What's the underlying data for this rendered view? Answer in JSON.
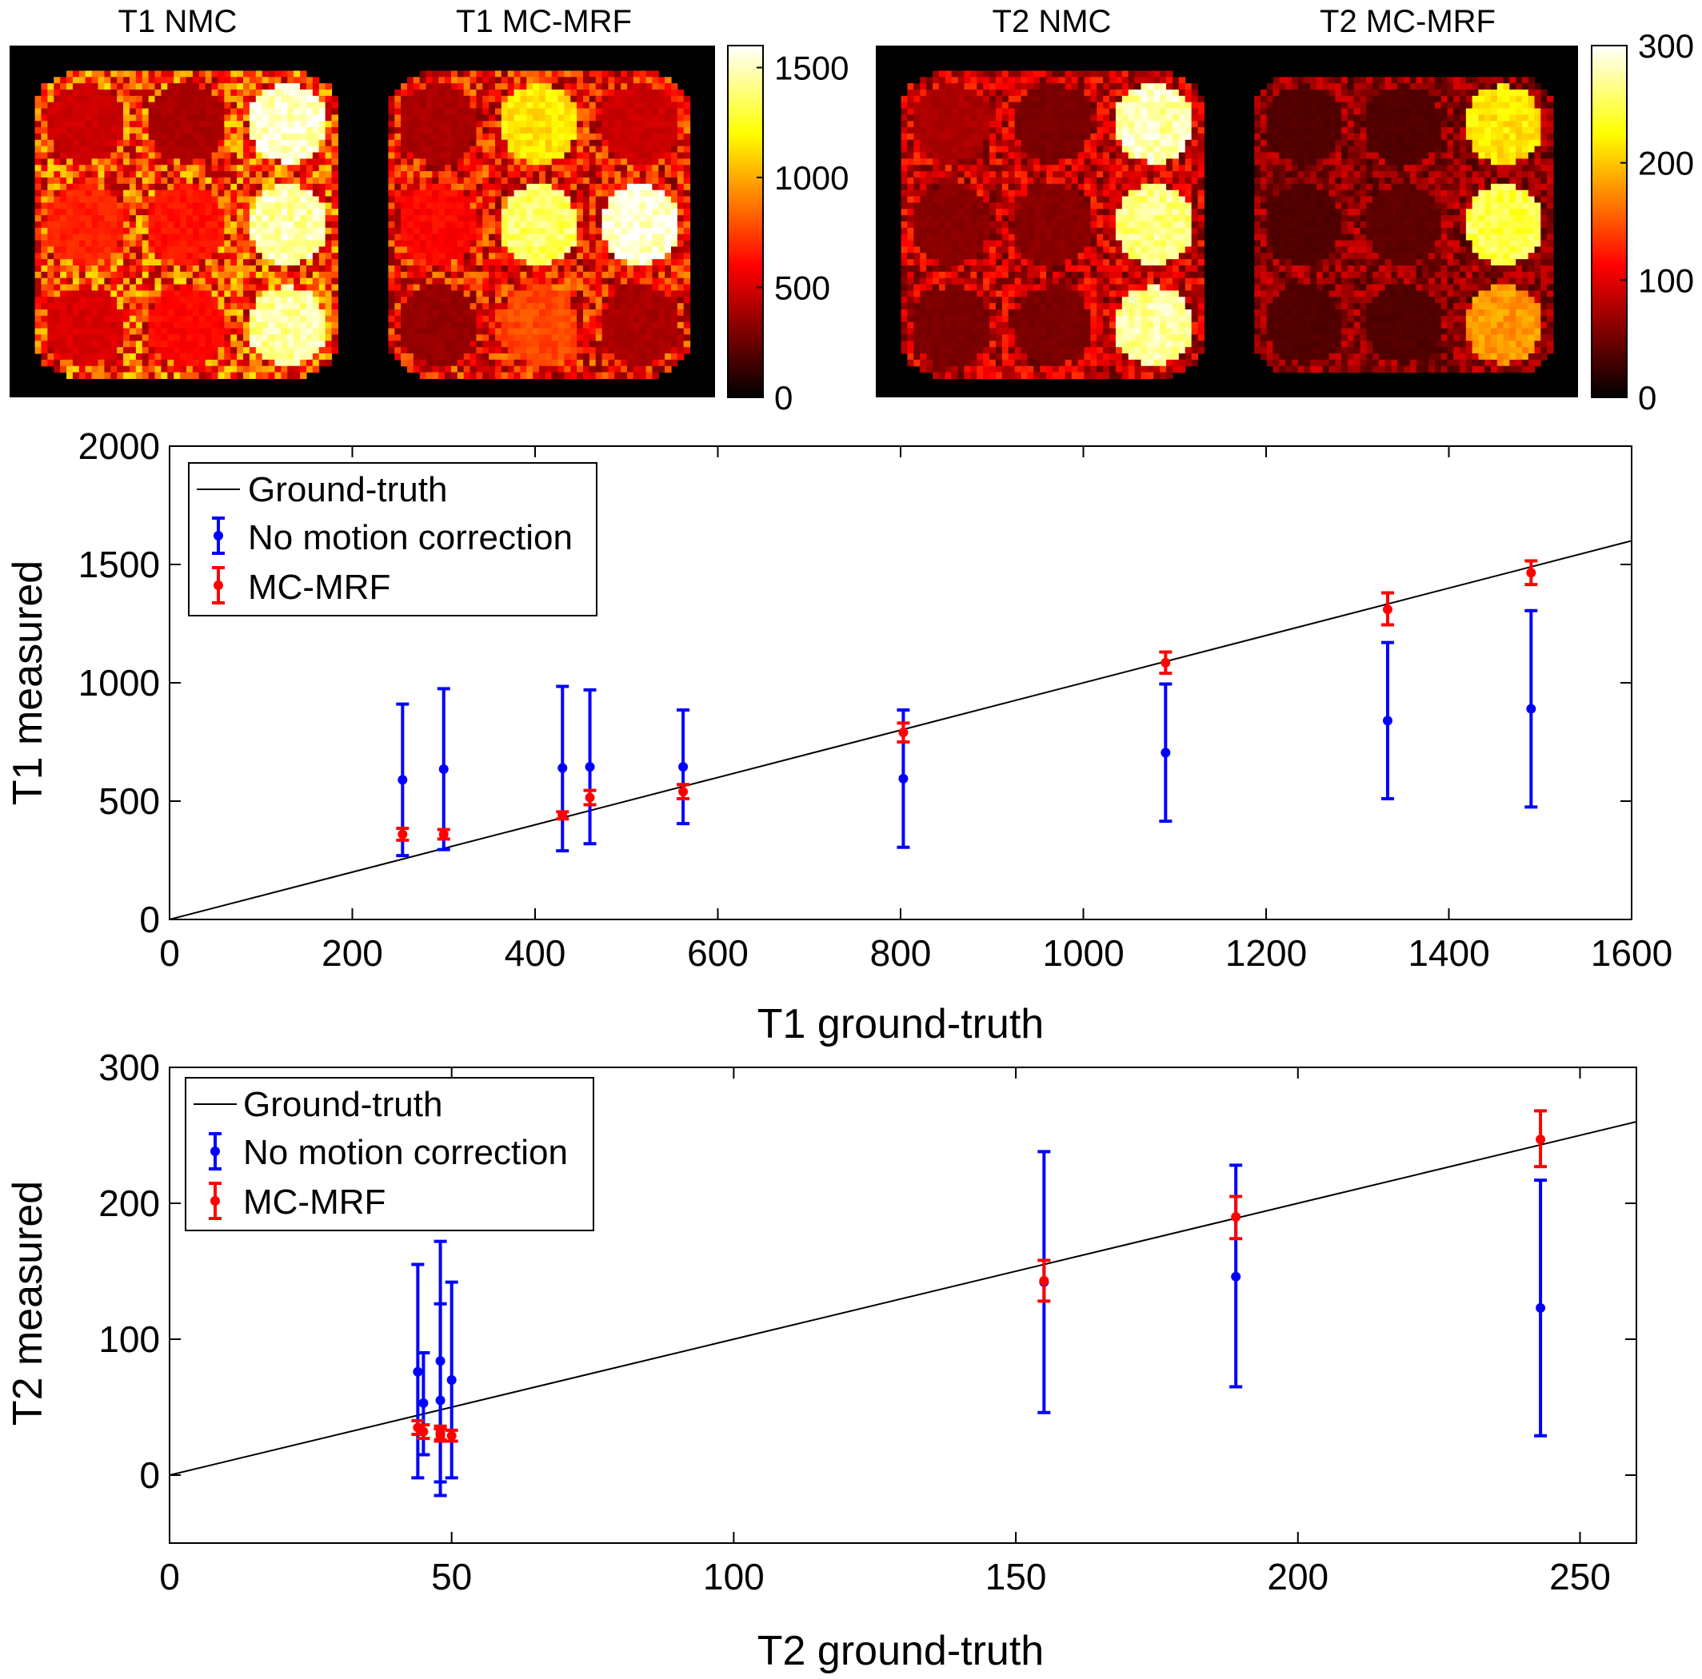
{
  "maps": [
    {
      "title": "T1 NMC",
      "pattern": "t1_nmc"
    },
    {
      "title": "T1 MC-MRF",
      "pattern": "t1_mcmrf"
    },
    {
      "title": "T2 NMC",
      "pattern": "t2_nmc"
    },
    {
      "title": "T2 MC-MRF",
      "pattern": "t2_mcmrf"
    }
  ],
  "colorbars": [
    {
      "ticks": [
        0,
        500,
        1000,
        1500
      ],
      "range": [
        0,
        1600
      ]
    },
    {
      "ticks": [
        0,
        100,
        200,
        300
      ],
      "range": [
        0,
        300
      ]
    }
  ],
  "colormap": "hot",
  "colors": {
    "ground_truth": "#000000",
    "nmc": "#0000ff",
    "mcmrf": "#ff0000"
  },
  "chart_data": [
    {
      "type": "scatter",
      "xlabel": "T1 ground-truth",
      "ylabel": "T1 measured",
      "xlim": [
        0,
        1600
      ],
      "ylim": [
        0,
        2000
      ],
      "xticks": [
        0,
        200,
        400,
        600,
        800,
        1000,
        1200,
        1400,
        1600
      ],
      "yticks": [
        0,
        500,
        1000,
        1500,
        2000
      ],
      "grid": false,
      "legend": "top-left",
      "ground_truth_line": {
        "name": "Ground-truth",
        "x": [
          0,
          1600
        ],
        "y": [
          0,
          1600
        ]
      },
      "series": [
        {
          "name": "No motion correction",
          "color": "#0000ff",
          "x": [
            255,
            300,
            430,
            460,
            562,
            803,
            1090,
            1333,
            1490
          ],
          "y": [
            590,
            635,
            640,
            645,
            645,
            595,
            705,
            840,
            890
          ],
          "lower": [
            270,
            295,
            290,
            320,
            405,
            305,
            415,
            510,
            475
          ],
          "upper": [
            910,
            975,
            985,
            970,
            885,
            885,
            995,
            1170,
            1305
          ]
        },
        {
          "name": "MC-MRF",
          "color": "#ff0000",
          "x": [
            255,
            300,
            430,
            460,
            562,
            803,
            1090,
            1333,
            1490
          ],
          "y": [
            360,
            360,
            440,
            515,
            540,
            790,
            1085,
            1310,
            1465
          ],
          "lower": [
            335,
            340,
            425,
            485,
            510,
            750,
            1040,
            1245,
            1415
          ],
          "upper": [
            385,
            380,
            455,
            545,
            570,
            830,
            1130,
            1380,
            1515
          ]
        }
      ]
    },
    {
      "type": "scatter",
      "xlabel": "T2 ground-truth",
      "ylabel": "T2 measured",
      "xlim": [
        0,
        260
      ],
      "ylim": [
        -50,
        300
      ],
      "xticks": [
        0,
        50,
        100,
        150,
        200,
        250
      ],
      "yticks": [
        0,
        100,
        200,
        300
      ],
      "grid": false,
      "legend": "top-left",
      "ground_truth_line": {
        "name": "Ground-truth",
        "x": [
          0,
          260
        ],
        "y": [
          0,
          260
        ]
      },
      "series": [
        {
          "name": "No motion correction",
          "color": "#0000ff",
          "x": [
            44,
            45,
            48,
            48,
            50,
            155,
            189,
            243
          ],
          "y": [
            76,
            53,
            84,
            55,
            70,
            142,
            146,
            123
          ],
          "lower": [
            -2,
            15,
            -5,
            -15,
            -2,
            46,
            65,
            29
          ],
          "upper": [
            155,
            90,
            172,
            126,
            142,
            238,
            228,
            217
          ]
        },
        {
          "name": "MC-MRF",
          "color": "#ff0000",
          "x": [
            44,
            45,
            48,
            48,
            50,
            155,
            189,
            243
          ],
          "y": [
            35,
            32,
            31,
            29,
            29,
            143,
            190,
            247
          ],
          "lower": [
            30,
            27,
            26,
            25,
            25,
            128,
            174,
            227
          ],
          "upper": [
            40,
            37,
            36,
            34,
            33,
            158,
            205,
            268
          ]
        }
      ]
    }
  ]
}
